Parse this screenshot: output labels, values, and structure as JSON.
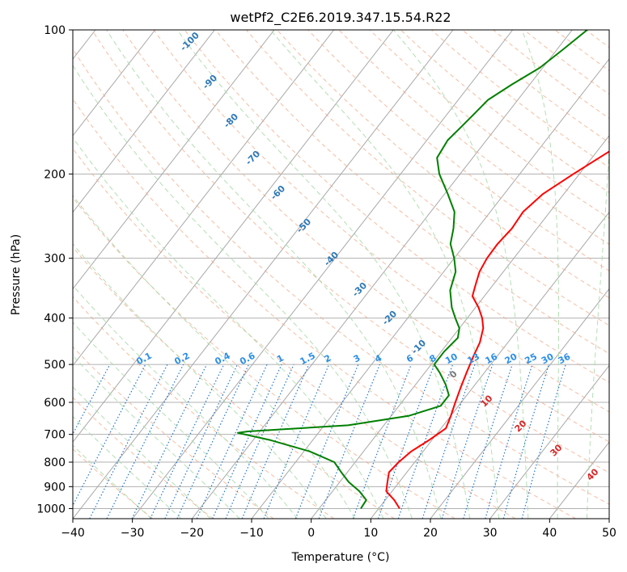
{
  "chart_data": {
    "type": "line",
    "title": "wetPf2_C2E6.2019.347.15.54.R22",
    "xlabel": "Temperature (°C)",
    "ylabel": "Pressure (hPa)",
    "xlim": [
      -40,
      50
    ],
    "ylim": [
      1050,
      100
    ],
    "y_scale": "log",
    "grid": true,
    "x_ticks": [
      -40,
      -30,
      -20,
      -10,
      0,
      10,
      20,
      30,
      40,
      50
    ],
    "y_ticks": [
      100,
      200,
      300,
      400,
      500,
      600,
      700,
      800,
      900,
      1000
    ],
    "skew_labels": [
      -100,
      -90,
      -80,
      -70,
      -60,
      -50,
      -40,
      -30,
      -20,
      -10
    ],
    "mixing_ratio_labels": [
      "0.1",
      "0.2",
      "0.4",
      "0.6",
      "1",
      "1.5",
      "2",
      "3",
      "4",
      "6",
      "8",
      "10",
      "13",
      "16",
      "20",
      "25",
      "30",
      "36"
    ],
    "moist_adiabat_labels": [
      "0",
      "10",
      "20",
      "30",
      "40"
    ],
    "colors": {
      "temperature": "#ff0000",
      "dewpoint": "#008000",
      "dry_adiabats": "#f4a582",
      "moist_adiabats": "#a6d9a6",
      "mixing_ratio": "#1f77d4",
      "isotherms": "#9e9e9e"
    },
    "series": [
      {
        "key": "temperature",
        "points": [
          [
            1000,
            13.5
          ],
          [
            960,
            11.5
          ],
          [
            920,
            9.0
          ],
          [
            880,
            8.0
          ],
          [
            840,
            7.0
          ],
          [
            800,
            7.3
          ],
          [
            760,
            8.0
          ],
          [
            720,
            9.5
          ],
          [
            680,
            10.8
          ],
          [
            640,
            10.0
          ],
          [
            600,
            9.0
          ],
          [
            560,
            8.0
          ],
          [
            520,
            7.0
          ],
          [
            480,
            6.0
          ],
          [
            450,
            5.3
          ],
          [
            420,
            4.0
          ],
          [
            400,
            2.5
          ],
          [
            380,
            0.5
          ],
          [
            360,
            -2.0
          ],
          [
            340,
            -3.0
          ],
          [
            320,
            -4.0
          ],
          [
            300,
            -4.5
          ],
          [
            280,
            -4.6
          ],
          [
            260,
            -4.2
          ],
          [
            240,
            -4.5
          ],
          [
            220,
            -3.5
          ],
          [
            200,
            -1.0
          ],
          [
            180,
            2.0
          ],
          [
            160,
            5.5
          ],
          [
            140,
            9.0
          ],
          [
            120,
            12.5
          ],
          [
            110,
            14.5
          ],
          [
            100,
            17.2
          ]
        ]
      },
      {
        "key": "dewpoint",
        "points": [
          [
            1000,
            7.0
          ],
          [
            960,
            6.8
          ],
          [
            920,
            4.5
          ],
          [
            880,
            1.5
          ],
          [
            840,
            -1.0
          ],
          [
            800,
            -3.5
          ],
          [
            760,
            -9.0
          ],
          [
            720,
            -17.0
          ],
          [
            695,
            -23.5
          ],
          [
            690,
            -22.0
          ],
          [
            670,
            -6.0
          ],
          [
            640,
            3.0
          ],
          [
            610,
            7.0
          ],
          [
            580,
            7.0
          ],
          [
            550,
            5.0
          ],
          [
            520,
            2.5
          ],
          [
            500,
            0.5
          ],
          [
            470,
            0.5
          ],
          [
            440,
            1.0
          ],
          [
            420,
            0.0
          ],
          [
            400,
            -2.0
          ],
          [
            380,
            -4.0
          ],
          [
            350,
            -6.5
          ],
          [
            320,
            -8.0
          ],
          [
            300,
            -10.0
          ],
          [
            280,
            -12.5
          ],
          [
            260,
            -14.0
          ],
          [
            240,
            -16.0
          ],
          [
            220,
            -19.5
          ],
          [
            200,
            -23.5
          ],
          [
            185,
            -26.0
          ],
          [
            170,
            -26.5
          ],
          [
            160,
            -26.0
          ],
          [
            150,
            -25.5
          ],
          [
            140,
            -25.0
          ],
          [
            130,
            -23.0
          ],
          [
            120,
            -20.5
          ],
          [
            110,
            -19.0
          ],
          [
            100,
            -17.5
          ]
        ]
      }
    ]
  }
}
